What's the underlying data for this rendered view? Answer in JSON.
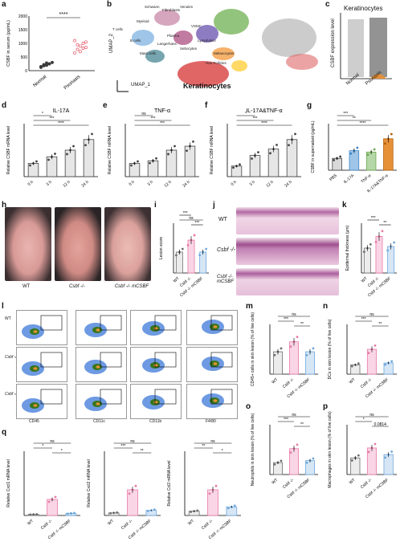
{
  "colors": {
    "normal_dot": "#3a3a3a",
    "psoriasis_dot": "#e05a6a",
    "bar_gray": "#d8d8d8",
    "bar_blue": "#6fa8dc",
    "bar_green": "#b6d7a8",
    "bar_orange": "#e69138",
    "wt": "#6d6d6d",
    "ko": "#e879a6",
    "mcsbf": "#6fa8dc"
  },
  "panels": {
    "a": {
      "label": "a",
      "ylabel": "CSBF in serum  (pg/mL)",
      "yticks": [
        "0",
        "500",
        "1000",
        "1500",
        "2000"
      ],
      "cats": [
        "Normal",
        "Psoriasis"
      ],
      "sig": "****"
    },
    "b": {
      "label": "b",
      "axis_x": "UMAP_1",
      "axis_y": "UMAP_2",
      "highlight": "Keratinocytes",
      "clusters": [
        "Fibroblasts",
        "Schwann",
        "Venules",
        "VSMC",
        "Myeloid",
        "T cells",
        "Plasma",
        "Langerhans",
        "B cells",
        "Lymphatics",
        "Sebocytes",
        "Mast cells",
        "Melanocytes",
        "Hair Follicles"
      ]
    },
    "c": {
      "label": "c",
      "title": "Keratinocytes",
      "ylabel": "CSBF expression level",
      "cats": [
        "Normal",
        "Psoriasis"
      ]
    },
    "d": {
      "label": "d",
      "title": "IL-17A",
      "ylabel": "Relative CSBF mRNA level",
      "cats": [
        "0 h",
        "3 h",
        "12 h",
        "24 h"
      ],
      "sig": [
        "*",
        "***",
        "****"
      ]
    },
    "e": {
      "label": "e",
      "title": "TNF-α",
      "ylabel": "Relative CSBF mRNA level",
      "cats": [
        "0 h",
        "3 h",
        "12 h",
        "24 h"
      ],
      "sig": [
        "ns",
        "***",
        "***"
      ]
    },
    "f": {
      "label": "f",
      "title": "IL-17A&TNF-α",
      "ylabel": "Relative CSBF mRNA level",
      "cats": [
        "0 h",
        "3 h",
        "12 h",
        "24 h"
      ],
      "sig": [
        "*",
        "***",
        "****"
      ]
    },
    "g": {
      "label": "g",
      "ylabel": "CSBF in supernatant (pg/mL)",
      "cats": [
        "PBS",
        "IL-17A",
        "TNF-α",
        "IL-17A&TNF-α"
      ],
      "sig": [
        "***",
        "**",
        "****"
      ]
    },
    "h": {
      "label": "h",
      "cats": [
        "WT",
        "Csbf -/-",
        "Csbf -/- mCSBF"
      ]
    },
    "i": {
      "label": "i",
      "ylabel": "Lesion score",
      "cats": [
        "WT",
        "Csbf -/-",
        "Csbf -/- mCSBF"
      ],
      "sig": [
        "***",
        "ns",
        "***"
      ]
    },
    "j": {
      "label": "j",
      "rows": [
        "WT",
        "Csbf -/-",
        "Csbf -/- mCSBF"
      ]
    },
    "k": {
      "label": "k",
      "ylabel": "Epidermal thickness (μm)",
      "cats": [
        "WT",
        "Csbf -/-",
        "Csbf -/- mCSBF"
      ],
      "sig": [
        "***",
        "**"
      ]
    },
    "l": {
      "label": "l",
      "rows": [
        "WT",
        "Csbf -/-",
        "Csbf -/- mCSBF"
      ],
      "xaxes": [
        "CD45",
        "CD11c",
        "CD11b",
        "F4/80"
      ]
    },
    "m": {
      "label": "m",
      "ylabel": "CD45+ cells in skin lesion (% of live cells)",
      "sig": [
        "ns",
        "***",
        "**"
      ]
    },
    "n": {
      "label": "n",
      "ylabel": "DCs in skin lesion (% of live cells)",
      "sig": [
        "ns",
        "***",
        "**"
      ]
    },
    "o": {
      "label": "o",
      "ylabel": "Neutrophils in skin lesion (% of live cells)",
      "sig": [
        "ns",
        "***",
        "**"
      ]
    },
    "p": {
      "label": "p",
      "ylabel": "Macrophages in skin lesion (% of live cells)",
      "sig": [
        "ns",
        "*",
        "0.0814"
      ]
    },
    "q": {
      "label": "q",
      "charts": [
        {
          "ylabel": "Relative Cxcl1 mRNA level",
          "sig": [
            "ns",
            "*",
            "*"
          ]
        },
        {
          "ylabel": "Relative Cxcl2 mRNA level",
          "sig": [
            "ns",
            "***",
            "**"
          ]
        },
        {
          "ylabel": "Relative Ccl2 mRNA level",
          "sig": [
            "ns",
            "**",
            "*"
          ]
        }
      ],
      "cats": [
        "WT",
        "Csbf -/-",
        "Csbf -/- mCSBF"
      ]
    }
  },
  "chart_data": [
    {
      "panel": "a",
      "type": "scatter",
      "categories": [
        "Normal",
        "Psoriasis"
      ],
      "series": [
        {
          "name": "Normal",
          "values": [
            120,
            180,
            200,
            250,
            300,
            150,
            220,
            280
          ]
        },
        {
          "name": "Psoriasis",
          "values": [
            650,
            780,
            900,
            1000,
            850,
            1100,
            950,
            700,
            820,
            1050
          ]
        }
      ],
      "ylim": [
        0,
        2000
      ]
    },
    {
      "panel": "d",
      "type": "bar",
      "categories": [
        "0 h",
        "3 h",
        "12 h",
        "24 h"
      ],
      "values": [
        1.0,
        1.5,
        2.0,
        2.8
      ],
      "ylim": [
        0,
        4
      ]
    },
    {
      "panel": "e",
      "type": "bar",
      "categories": [
        "0 h",
        "3 h",
        "12 h",
        "24 h"
      ],
      "values": [
        1.0,
        1.2,
        2.0,
        2.3
      ],
      "ylim": [
        0,
        4
      ]
    },
    {
      "panel": "f",
      "type": "bar",
      "categories": [
        "0 h",
        "3 h",
        "12 h",
        "24 h"
      ],
      "values": [
        1.0,
        2.0,
        2.6,
        3.5
      ],
      "ylim": [
        0,
        5
      ]
    },
    {
      "panel": "g",
      "type": "bar",
      "categories": [
        "PBS",
        "IL-17A",
        "TNF-α",
        "IL-17A&TNF-α"
      ],
      "values": [
        510,
        840,
        780,
        1350
      ],
      "ylim": [
        0,
        2000
      ]
    },
    {
      "panel": "i",
      "type": "bar",
      "categories": [
        "WT",
        "Csbf -/-",
        "Csbf -/- mCSBF"
      ],
      "values": [
        2.1,
        3.3,
        2.1
      ],
      "ylim": [
        0,
        5
      ]
    },
    {
      "panel": "k",
      "type": "bar",
      "categories": [
        "WT",
        "Csbf -/-",
        "Csbf -/- mCSBF"
      ],
      "values": [
        75,
        110,
        80
      ],
      "ylim": [
        0,
        150
      ]
    },
    {
      "panel": "m",
      "type": "bar",
      "categories": [
        "WT",
        "Csbf -/-",
        "Csbf -/- mCSBF"
      ],
      "values": [
        18,
        26,
        18
      ],
      "ylim": [
        0,
        40
      ]
    },
    {
      "panel": "n",
      "type": "bar",
      "categories": [
        "WT",
        "Csbf -/-",
        "Csbf -/- mCSBF"
      ],
      "values": [
        1.5,
        4.0,
        1.8
      ],
      "ylim": [
        0,
        8
      ]
    },
    {
      "panel": "o",
      "type": "bar",
      "categories": [
        "WT",
        "Csbf -/-",
        "Csbf -/- mCSBF"
      ],
      "values": [
        6,
        13,
        7
      ],
      "ylim": [
        0,
        25
      ]
    },
    {
      "panel": "p",
      "type": "bar",
      "categories": [
        "WT",
        "Csbf -/-",
        "Csbf -/- mCSBF"
      ],
      "values": [
        5,
        8,
        6
      ],
      "ylim": [
        0,
        15
      ]
    },
    {
      "panel": "q1",
      "type": "bar",
      "categories": [
        "WT",
        "Csbf -/-",
        "Csbf -/- mCSBF"
      ],
      "values": [
        1,
        15,
        2
      ],
      "ylim": [
        0,
        60
      ]
    },
    {
      "panel": "q2",
      "type": "bar",
      "categories": [
        "WT",
        "Csbf -/-",
        "Csbf -/- mCSBF"
      ],
      "values": [
        1,
        10,
        2
      ],
      "ylim": [
        0,
        25
      ]
    },
    {
      "panel": "q3",
      "type": "bar",
      "categories": [
        "WT",
        "Csbf -/-",
        "Csbf -/- mCSBF"
      ],
      "values": [
        1,
        6,
        2
      ],
      "ylim": [
        0,
        15
      ]
    }
  ]
}
